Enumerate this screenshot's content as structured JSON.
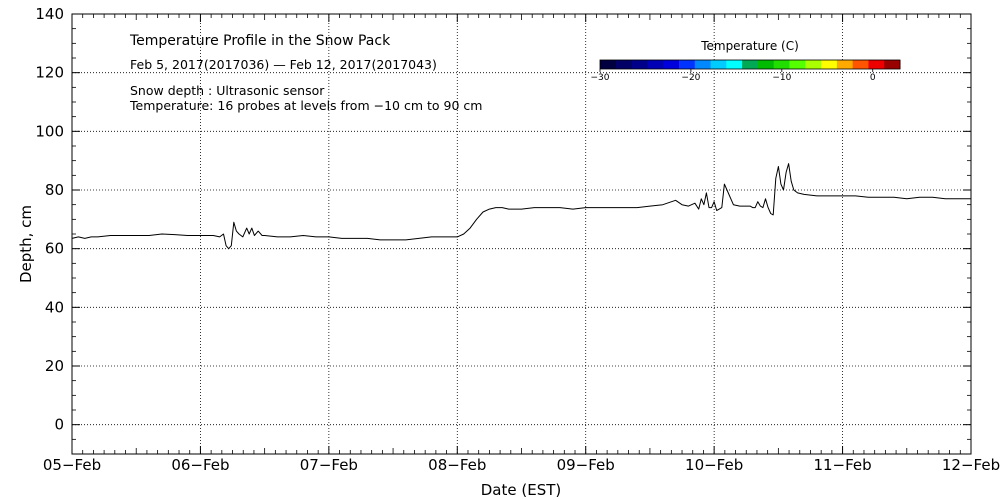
{
  "chart_data": {
    "type": "line",
    "title": "Temperature Profile in the Snow Pack",
    "subtitle": "Feb  5, 2017(2017036) — Feb 12, 2017(2017043)",
    "notes": [
      "Snow depth : Ultrasonic sensor",
      "Temperature: 16 probes at levels from −10 cm to 90 cm"
    ],
    "xlabel": "Date (EST)",
    "ylabel": "Depth, cm",
    "x_ticks": [
      "05−Feb",
      "06−Feb",
      "07−Feb",
      "08−Feb",
      "09−Feb",
      "10−Feb",
      "11−Feb",
      "12−Feb"
    ],
    "xlim": [
      0,
      7
    ],
    "ylim": [
      -10,
      140
    ],
    "y_ticks": [
      0,
      20,
      40,
      60,
      80,
      100,
      120,
      140
    ],
    "grid": true,
    "line_color": "#000000",
    "colorbar": {
      "title": "Temperature (C)",
      "range": [
        -30,
        3
      ],
      "tick_values": [
        -30,
        -20,
        -10,
        0
      ],
      "tick_labels": [
        "−30",
        "−20",
        "−10",
        "0"
      ],
      "colors": [
        "#000040",
        "#000066",
        "#00008b",
        "#0000b4",
        "#0000dd",
        "#0033ff",
        "#0088ff",
        "#00ccff",
        "#00ffff",
        "#00aa55",
        "#00bb00",
        "#22dd00",
        "#55ff00",
        "#aaff00",
        "#ffff00",
        "#ffaa00",
        "#ff5500",
        "#ee0000",
        "#990000"
      ]
    },
    "series": [
      {
        "name": "",
        "x": [
          0.0,
          0.05,
          0.1,
          0.15,
          0.2,
          0.3,
          0.4,
          0.5,
          0.6,
          0.7,
          0.8,
          0.9,
          1.0,
          1.1,
          1.15,
          1.18,
          1.2,
          1.22,
          1.24,
          1.26,
          1.28,
          1.3,
          1.33,
          1.36,
          1.38,
          1.4,
          1.42,
          1.45,
          1.48,
          1.5,
          1.6,
          1.7,
          1.8,
          1.9,
          2.0,
          2.1,
          2.2,
          2.3,
          2.4,
          2.5,
          2.6,
          2.7,
          2.8,
          2.9,
          3.0,
          3.05,
          3.1,
          3.15,
          3.2,
          3.25,
          3.3,
          3.35,
          3.4,
          3.5,
          3.6,
          3.7,
          3.8,
          3.9,
          4.0,
          4.1,
          4.2,
          4.3,
          4.4,
          4.5,
          4.6,
          4.7,
          4.75,
          4.8,
          4.85,
          4.88,
          4.9,
          4.92,
          4.94,
          4.96,
          4.98,
          5.0,
          5.02,
          5.04,
          5.06,
          5.08,
          5.1,
          5.15,
          5.2,
          5.25,
          5.28,
          5.3,
          5.32,
          5.34,
          5.36,
          5.38,
          5.4,
          5.42,
          5.44,
          5.46,
          5.48,
          5.5,
          5.52,
          5.54,
          5.56,
          5.58,
          5.6,
          5.62,
          5.65,
          5.7,
          5.8,
          5.9,
          6.0,
          6.1,
          6.2,
          6.3,
          6.4,
          6.5,
          6.6,
          6.7,
          6.8,
          6.9,
          7.0
        ],
        "y": [
          63.5,
          64.0,
          63.5,
          64.0,
          64.0,
          64.5,
          64.5,
          64.5,
          64.5,
          65.0,
          64.8,
          64.5,
          64.5,
          64.5,
          64.0,
          65.0,
          61.0,
          60.0,
          61.0,
          69.0,
          66.0,
          65.0,
          64.0,
          67.0,
          65.0,
          67.0,
          64.5,
          66.0,
          64.5,
          64.5,
          64.0,
          64.0,
          64.5,
          64.0,
          64.0,
          63.5,
          63.5,
          63.5,
          63.0,
          63.0,
          63.0,
          63.5,
          64.0,
          64.0,
          64.0,
          65.0,
          67.0,
          70.0,
          72.5,
          73.5,
          74.0,
          74.0,
          73.5,
          73.5,
          74.0,
          74.0,
          74.0,
          73.5,
          74.0,
          74.0,
          74.0,
          74.0,
          74.0,
          74.5,
          75.0,
          76.5,
          75.0,
          74.5,
          75.5,
          73.5,
          77.0,
          75.0,
          79.0,
          74.0,
          74.0,
          76.0,
          73.0,
          73.5,
          74.0,
          82.0,
          80.0,
          75.0,
          74.5,
          74.5,
          74.5,
          74.0,
          74.0,
          76.0,
          74.5,
          74.0,
          77.0,
          74.0,
          72.0,
          71.5,
          84.0,
          88.0,
          82.0,
          80.0,
          86.0,
          89.0,
          83.0,
          80.0,
          79.0,
          78.5,
          78.0,
          78.0,
          78.0,
          78.0,
          77.5,
          77.5,
          77.5,
          77.0,
          77.5,
          77.5,
          77.0,
          77.0,
          77.0
        ]
      }
    ]
  }
}
